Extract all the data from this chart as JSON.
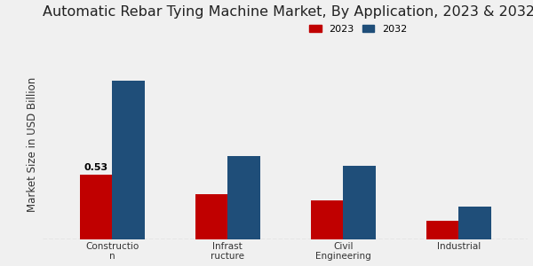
{
  "title": "Automatic Rebar Tying Machine Market, By Application, 2023 & 2032",
  "ylabel": "Market Size in USD Billion",
  "categories": [
    "Constructio\nn",
    "Infrast\nructure",
    "Civil\nEngineering",
    "Industrial"
  ],
  "values_2023": [
    0.53,
    0.37,
    0.32,
    0.15
  ],
  "values_2032": [
    1.3,
    0.68,
    0.6,
    0.27
  ],
  "color_2023": "#c00000",
  "color_2032": "#1f4e79",
  "annotation_text": "0.53",
  "annotation_bar": 0,
  "bar_width": 0.28,
  "ylim": [
    0,
    1.55
  ],
  "legend_labels": [
    "2023",
    "2032"
  ],
  "title_fontsize": 11.5,
  "ylabel_fontsize": 8.5,
  "tick_fontsize": 7.5,
  "legend_fontsize": 8
}
